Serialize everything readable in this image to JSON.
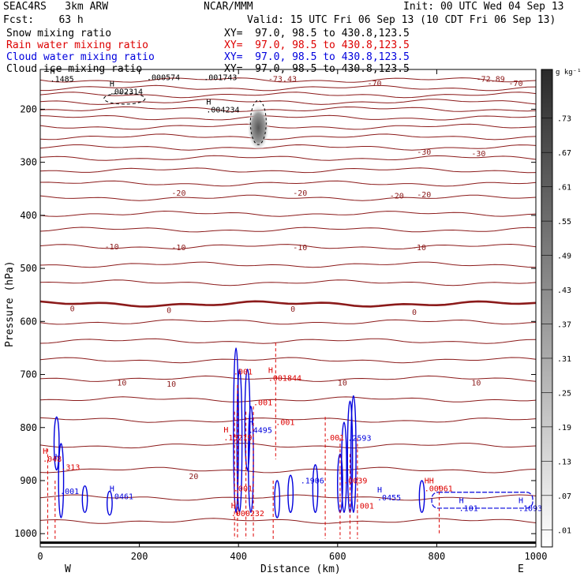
{
  "header": {
    "model": "SEAC4RS   3km ARW",
    "center": "NCAR/MMM",
    "init": "Init: 00 UTC Wed 04 Sep 13",
    "fcst": "Fcst:    63 h",
    "valid": "Valid: 15 UTC Fri 06 Sep 13 (10 CDT Fri 06 Sep 13)",
    "fields": [
      {
        "name": "Snow mixing ratio",
        "xy": "XY=  97.0, 98.5 to 430.8,123.5",
        "color": "#000000"
      },
      {
        "name": "Rain water mixing ratio",
        "xy": "XY=  97.0, 98.5 to 430.8,123.5",
        "color": "#dd0000"
      },
      {
        "name": "Cloud water mixing ratio",
        "xy": "XY=  97.0, 98.5 to 430.8,123.5",
        "color": "#0000dd"
      },
      {
        "name": "Cloud ice mixing ratio",
        "xy": "XY=  97.0, 98.5 to 430.8,123.5",
        "color": "#000000"
      }
    ]
  },
  "chart_data": {
    "type": "cross-section contour",
    "xlabel": "Distance (km)",
    "ylabel": "Pressure (hPa)",
    "xlim": [
      0,
      1000
    ],
    "ylim": [
      1025,
      125
    ],
    "x_ticks": [
      0,
      200,
      400,
      600,
      800,
      1000
    ],
    "y_ticks": [
      200,
      300,
      400,
      500,
      600,
      700,
      800,
      900,
      1000
    ],
    "x_end_labels": [
      "W",
      "E"
    ],
    "colorbar": {
      "unit": "g kg⁻¹",
      "levels": [
        ".01",
        ".07",
        ".13",
        ".19",
        ".25",
        ".31",
        ".37",
        ".43",
        ".49",
        ".55",
        ".61",
        ".67",
        ".73"
      ]
    },
    "temperature_labels": [
      {
        "x": 460,
        "p": 142,
        "text": "-73.43"
      },
      {
        "x": 880,
        "p": 142,
        "text": "-72.89"
      },
      {
        "x": 660,
        "p": 150,
        "text": "-70"
      },
      {
        "x": 945,
        "p": 150,
        "text": "-70"
      },
      {
        "x": 760,
        "p": 280,
        "text": "-30"
      },
      {
        "x": 870,
        "p": 283,
        "text": "-30"
      },
      {
        "x": 265,
        "p": 357,
        "text": "-20"
      },
      {
        "x": 510,
        "p": 357,
        "text": "-20"
      },
      {
        "x": 705,
        "p": 362,
        "text": "-20"
      },
      {
        "x": 760,
        "p": 360,
        "text": "-20"
      },
      {
        "x": 130,
        "p": 458,
        "text": "-10"
      },
      {
        "x": 265,
        "p": 460,
        "text": "-10"
      },
      {
        "x": 510,
        "p": 460,
        "text": "-10"
      },
      {
        "x": 750,
        "p": 460,
        "text": "-10"
      },
      {
        "x": 60,
        "p": 575,
        "text": "0"
      },
      {
        "x": 255,
        "p": 578,
        "text": "0"
      },
      {
        "x": 505,
        "p": 576,
        "text": "0"
      },
      {
        "x": 750,
        "p": 582,
        "text": "0"
      },
      {
        "x": 155,
        "p": 715,
        "text": "10"
      },
      {
        "x": 255,
        "p": 717,
        "text": "10"
      },
      {
        "x": 600,
        "p": 715,
        "text": "10"
      },
      {
        "x": 870,
        "p": 715,
        "text": "10"
      },
      {
        "x": 300,
        "p": 891,
        "text": "20"
      }
    ],
    "isotherm_pressures": [
      145,
      160,
      173,
      186,
      200,
      216,
      233,
      252,
      272,
      292,
      315,
      340,
      367,
      397,
      427,
      459,
      493,
      527,
      567,
      601,
      637,
      673,
      708,
      747,
      786,
      834,
      880,
      932,
      976
    ],
    "snow_labels": [
      {
        "x": 20,
        "p": 148,
        "text": "H",
        "v": ".1485"
      },
      {
        "x": 140,
        "p": 172,
        "text": "H",
        "v": ".002314"
      },
      {
        "x": 215,
        "p": 145,
        "text": "",
        "v": ".000574"
      },
      {
        "x": 330,
        "p": 145,
        "text": "",
        "v": ".001743"
      },
      {
        "x": 335,
        "p": 206,
        "text": "H",
        "v": ".004234"
      }
    ],
    "rain_labels": [
      {
        "x": 5,
        "p": 864,
        "text": "H",
        "v": ".048"
      },
      {
        "x": 42,
        "p": 880,
        "text": "",
        "v": ".313"
      },
      {
        "x": 370,
        "p": 824,
        "text": "H",
        "v": ".15219"
      },
      {
        "x": 460,
        "p": 712,
        "text": "H",
        "v": ".001844"
      },
      {
        "x": 390,
        "p": 700,
        "text": "",
        "v": ".001"
      },
      {
        "x": 430,
        "p": 758,
        "text": "",
        "v": ".001"
      },
      {
        "x": 475,
        "p": 795,
        "text": "",
        "v": ".001"
      },
      {
        "x": 385,
        "p": 967,
        "text": "H",
        "v": ".000232"
      },
      {
        "x": 575,
        "p": 824,
        "text": "",
        "v": ".001"
      },
      {
        "x": 612,
        "p": 905,
        "text": "",
        "v": ".0039"
      },
      {
        "x": 635,
        "p": 953,
        "text": "",
        "v": ".001"
      },
      {
        "x": 775,
        "p": 920,
        "text": "HH",
        "v": ".00061"
      },
      {
        "x": 390,
        "p": 920,
        "text": "",
        "v": ".001"
      }
    ],
    "cloud_labels": [
      {
        "x": 30,
        "p": 875,
        "text": "H",
        "v": ""
      },
      {
        "x": 40,
        "p": 925,
        "text": "",
        "v": ".001"
      },
      {
        "x": 140,
        "p": 935,
        "text": "H",
        "v": ".0461"
      },
      {
        "x": 420,
        "p": 810,
        "text": "H",
        "v": ".4495"
      },
      {
        "x": 525,
        "p": 905,
        "text": "",
        "v": ".1906"
      },
      {
        "x": 620,
        "p": 825,
        "text": "",
        "v": ".2593"
      },
      {
        "x": 680,
        "p": 937,
        "text": "H",
        "v": ".0455"
      },
      {
        "x": 845,
        "p": 957,
        "text": "H",
        "v": ".101"
      },
      {
        "x": 965,
        "p": 957,
        "text": "H",
        "v": ".1093"
      }
    ]
  }
}
